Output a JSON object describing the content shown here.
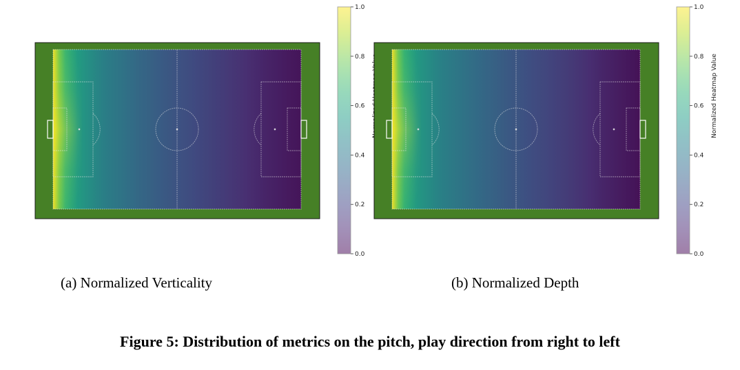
{
  "figure_caption": "Figure 5: Distribution of metrics on the pitch, play direction from right to left",
  "colors": {
    "grass": "#468026",
    "line": "#e6e6e6",
    "colormap": [
      "#440154",
      "#482878",
      "#3e4989",
      "#31688e",
      "#26828e",
      "#1f9e89",
      "#35b779",
      "#6ece58",
      "#b5de2b",
      "#fde725"
    ]
  },
  "chart_data": [
    {
      "type": "heatmap",
      "caption": "(a) Normalized Verticality",
      "colorbar": {
        "label": "Normalized Heatmap Value",
        "ticks": [
          "0.0",
          "0.2",
          "0.4",
          "0.6",
          "0.8",
          "1.0"
        ],
        "range": [
          0,
          1
        ]
      },
      "gradient": "decreasing left to right",
      "profile_x": [
        0,
        0.02,
        0.05,
        0.1,
        0.2,
        0.35,
        0.5,
        0.7,
        0.85,
        1.0
      ],
      "profile_value": [
        1.0,
        0.82,
        0.68,
        0.55,
        0.43,
        0.32,
        0.24,
        0.15,
        0.08,
        0.03
      ],
      "vertical_peak_width": 0.35
    },
    {
      "type": "heatmap",
      "caption": "(b) Normalized Depth",
      "colorbar": {
        "label": "Normalized Heatmap Value",
        "ticks": [
          "0.0",
          "0.2",
          "0.4",
          "0.6",
          "0.8",
          "1.0"
        ],
        "range": [
          0,
          1
        ]
      },
      "gradient": "decreasing left to right",
      "profile_x": [
        0,
        0.02,
        0.05,
        0.1,
        0.2,
        0.35,
        0.5,
        0.7,
        0.85,
        1.0
      ],
      "profile_value": [
        1.0,
        0.8,
        0.66,
        0.54,
        0.43,
        0.33,
        0.25,
        0.16,
        0.08,
        0.02
      ],
      "vertical_peak_width": 0.35
    }
  ]
}
